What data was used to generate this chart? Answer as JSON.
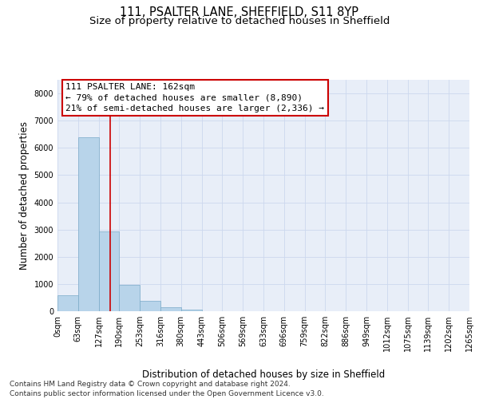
{
  "title_line1": "111, PSALTER LANE, SHEFFIELD, S11 8YP",
  "title_line2": "Size of property relative to detached houses in Sheffield",
  "xlabel": "Distribution of detached houses by size in Sheffield",
  "ylabel": "Number of detached properties",
  "bar_values": [
    600,
    6380,
    2920,
    960,
    370,
    145,
    70,
    0,
    0,
    0,
    0,
    0,
    0,
    0,
    0,
    0,
    0,
    0,
    0,
    0
  ],
  "bar_labels": [
    "0sqm",
    "63sqm",
    "127sqm",
    "190sqm",
    "253sqm",
    "316sqm",
    "380sqm",
    "443sqm",
    "506sqm",
    "569sqm",
    "633sqm",
    "696sqm",
    "759sqm",
    "822sqm",
    "886sqm",
    "949sqm",
    "1012sqm",
    "1075sqm",
    "1139sqm",
    "1202sqm",
    "1265sqm"
  ],
  "bar_color": "#b8d4ea",
  "bar_edge_color": "#7aaac8",
  "vline_x": 2.56,
  "vline_color": "#cc0000",
  "annotation_text": "111 PSALTER LANE: 162sqm\n← 79% of detached houses are smaller (8,890)\n21% of semi-detached houses are larger (2,336) →",
  "annotation_box_color": "#ffffff",
  "annotation_box_edge": "#cc0000",
  "ylim": [
    0,
    8500
  ],
  "yticks": [
    0,
    1000,
    2000,
    3000,
    4000,
    5000,
    6000,
    7000,
    8000
  ],
  "grid_color": "#ccd8ee",
  "background_color": "#e8eef8",
  "footer_line1": "Contains HM Land Registry data © Crown copyright and database right 2024.",
  "footer_line2": "Contains public sector information licensed under the Open Government Licence v3.0.",
  "title_fontsize": 10.5,
  "subtitle_fontsize": 9.5,
  "axis_label_fontsize": 8.5,
  "tick_fontsize": 7,
  "annotation_fontsize": 8,
  "footer_fontsize": 6.5
}
